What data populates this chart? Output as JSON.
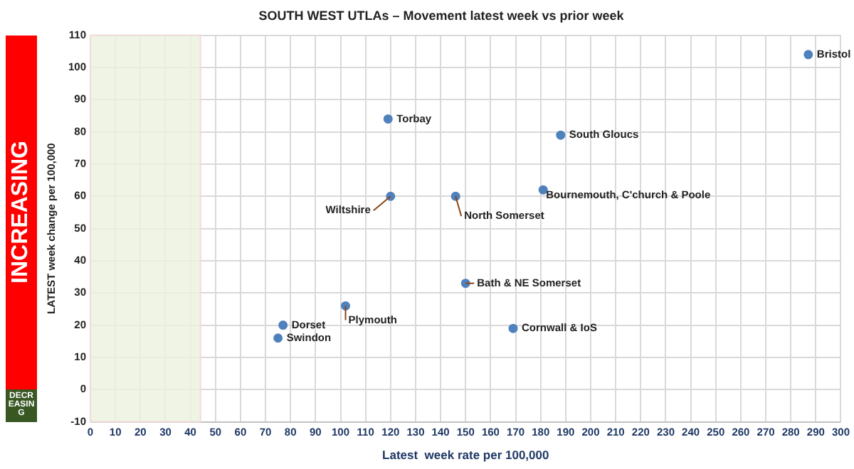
{
  "chart_data": {
    "type": "scatter",
    "title": "SOUTH WEST UTLAs – Movement latest week vs prior week",
    "xlabel": "Latest  week rate per 100,000",
    "ylabel": "LATEST week change per 100,000",
    "x": [
      287,
      188,
      181,
      119,
      120,
      146,
      150,
      102,
      169,
      77,
      75
    ],
    "series": [
      {
        "color": "#4f81bd",
        "values": [
          104,
          79,
          62,
          84,
          60,
          60,
          33,
          26,
          19,
          20,
          16
        ]
      }
    ],
    "annotations": [
      {
        "text": "Bristol",
        "x": 287,
        "y": 104
      },
      {
        "text": "South Gloucs",
        "x": 188,
        "y": 79
      },
      {
        "text": "Bournemouth, C'church & Poole",
        "x": 181,
        "y": 62
      },
      {
        "text": "Torbay",
        "x": 119,
        "y": 84
      },
      {
        "text": "Wiltshire",
        "x": 120,
        "y": 60
      },
      {
        "text": "North Somerset",
        "x": 146,
        "y": 60
      },
      {
        "text": "Bath & NE Somerset",
        "x": 150,
        "y": 33
      },
      {
        "text": "Plymouth",
        "x": 102,
        "y": 26
      },
      {
        "text": "Cornwall & IoS",
        "x": 169,
        "y": 19
      },
      {
        "text": "Dorset",
        "x": 77,
        "y": 20
      },
      {
        "text": "Swindon",
        "x": 75,
        "y": 16
      },
      "INCREASING",
      "DECREASING"
    ],
    "bands": [
      {
        "axis": "x",
        "from": 0,
        "to": 44,
        "color": "#ebf1de"
      }
    ],
    "xlim": [
      0,
      300
    ],
    "xticks": [
      0,
      10,
      20,
      30,
      40,
      50,
      60,
      70,
      80,
      90,
      100,
      110,
      120,
      130,
      140,
      150,
      160,
      170,
      180,
      190,
      200,
      210,
      220,
      230,
      240,
      250,
      260,
      270,
      280,
      290,
      300
    ],
    "ylim": [
      -10,
      110
    ],
    "yticks": [
      -10,
      0,
      10,
      20,
      30,
      40,
      50,
      60,
      70,
      80,
      90,
      100,
      110
    ],
    "grid": true,
    "legend": false,
    "marker": "circle"
  }
}
